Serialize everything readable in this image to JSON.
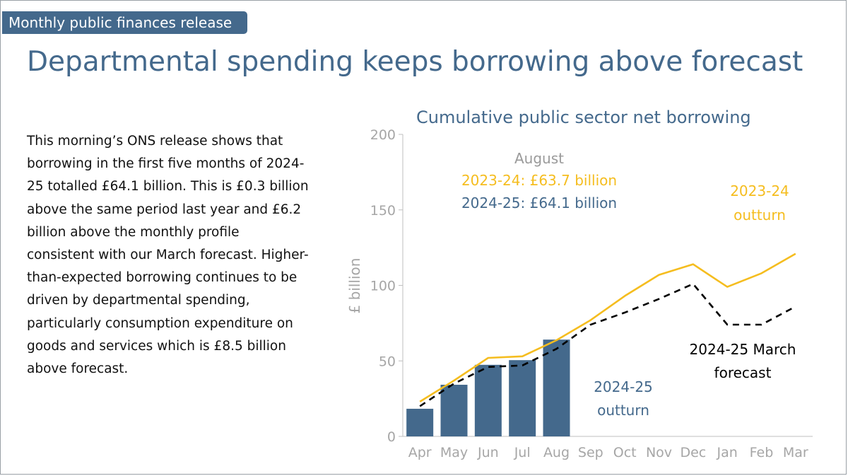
{
  "header": {
    "release_tag": "Monthly public finances release",
    "title": "Departmental spending keeps borrowing above forecast"
  },
  "body_text": "This morning’s ONS release shows that borrowing in the first five months of 2024-25 totalled £64.1 billion. This is £0.3 billion above the same period last year and £6.2 billion above the monthly profile consistent with our March forecast. Higher-than-expected borrowing continues to be driven by departmental spending, particularly consumption expenditure on goods and services which is £8.5 billion above forecast.",
  "colors": {
    "bar": "#44698c",
    "line_2023_24": "#f5bd1f",
    "forecast": "#000000",
    "axis_text": "#a6a6a6",
    "label_grey": "#9a9a9a"
  },
  "chart_data": {
    "type": "bar",
    "title": "Cumulative public sector net borrowing",
    "ylabel": "£ billion",
    "ylim": [
      0,
      200
    ],
    "yticks": [
      "0",
      "50",
      "100",
      "150",
      "200"
    ],
    "categories": [
      "Apr",
      "May",
      "Jun",
      "Jul",
      "Aug",
      "Sep",
      "Oct",
      "Nov",
      "Dec",
      "Jan",
      "Feb",
      "Mar"
    ],
    "series": [
      {
        "name": "2024-25 outturn",
        "kind": "bar",
        "values": [
          18.3,
          34.2,
          47.4,
          50.5,
          64.1,
          null,
          null,
          null,
          null,
          null,
          null,
          null
        ]
      },
      {
        "name": "2023-24 outturn",
        "kind": "line",
        "values": [
          23,
          37,
          52,
          53,
          63.7,
          77,
          93,
          107,
          114,
          99,
          108,
          121
        ]
      },
      {
        "name": "2024-25 March forecast",
        "kind": "dashed-line",
        "values": [
          20,
          35,
          46,
          47,
          58,
          74,
          82,
          91,
          101,
          74,
          74,
          86
        ]
      }
    ],
    "annotations": {
      "august_heading": "August",
      "august_2023_24": "2023-24: £63.7 billion",
      "august_2024_25": "2024-25: £64.1 billion",
      "label_2023_24_line1": "2023-24",
      "label_2023_24_line2": "outturn",
      "label_forecast_line1": "2024-25 March",
      "label_forecast_line2": "forecast",
      "label_outturn_line1": "2024-25",
      "label_outturn_line2": "outturn"
    },
    "grid": false,
    "legend": "none"
  }
}
